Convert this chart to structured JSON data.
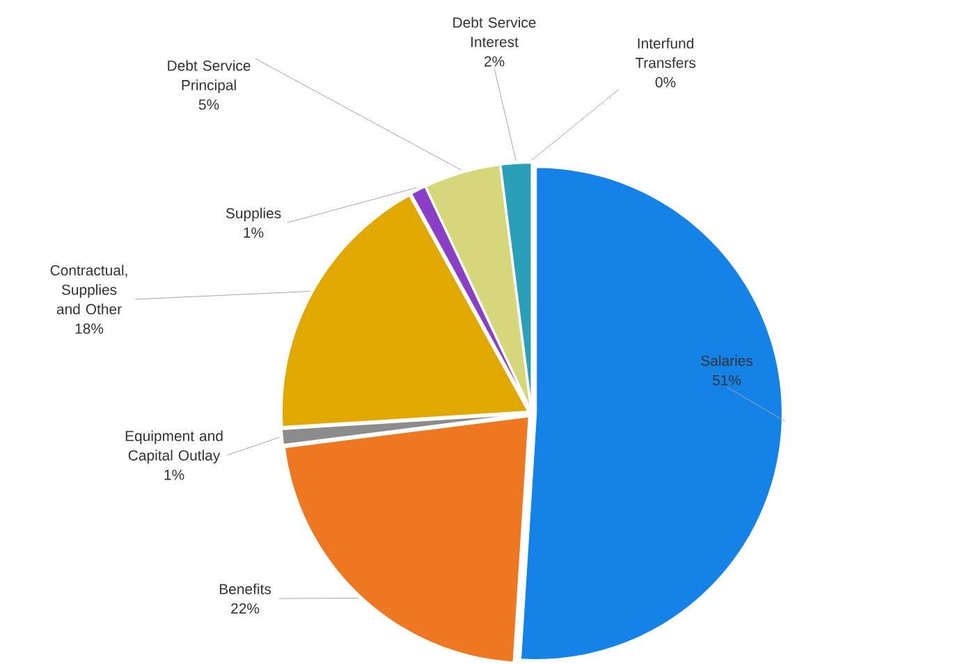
{
  "chart_data": {
    "type": "pie",
    "categories": [
      "Salaries",
      "Benefits",
      "Equipment and Capital Outlay",
      "Contractual, Supplies and Other",
      "Supplies",
      "Debt Service Principal",
      "Debt Service Interest",
      "Interfund Transfers"
    ],
    "values": [
      51,
      22,
      1,
      18,
      1,
      5,
      2,
      0
    ],
    "value_labels": [
      "51%",
      "22%",
      "1%",
      "18%",
      "1%",
      "5%",
      "2%",
      "0%"
    ],
    "colors": [
      "#1482e6",
      "#ee7722",
      "#8c8c8c",
      "#e0a800",
      "#8b3fc6",
      "#d6d67a",
      "#2aa0b8",
      "#7f7f7f"
    ]
  }
}
